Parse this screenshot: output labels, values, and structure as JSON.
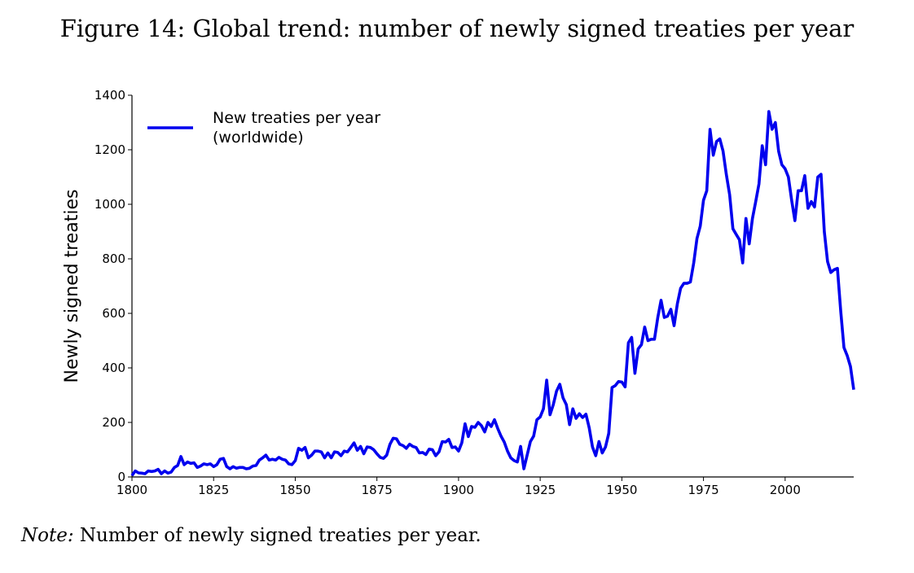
{
  "figure": {
    "title": "Figure 14: Global trend: number of newly signed treaties per year",
    "note_label": "Note:",
    "note_text": " Number of newly signed treaties per year."
  },
  "chart_data": {
    "type": "line",
    "title": "",
    "xlabel": "",
    "ylabel": "Newly signed treaties",
    "xlim": [
      1800,
      2021
    ],
    "ylim": [
      0,
      1400
    ],
    "xticks": [
      1800,
      1825,
      1850,
      1875,
      1900,
      1925,
      1950,
      1975,
      2000
    ],
    "yticks": [
      0,
      200,
      400,
      600,
      800,
      1000,
      1200,
      1400
    ],
    "grid": false,
    "legend_position": "top-left",
    "series": [
      {
        "name": "New treaties per year\n(worldwide)",
        "color": "#0000ee",
        "x": [
          1800,
          1801,
          1802,
          1803,
          1804,
          1805,
          1806,
          1807,
          1808,
          1809,
          1810,
          1811,
          1812,
          1813,
          1814,
          1815,
          1816,
          1817,
          1818,
          1819,
          1820,
          1821,
          1822,
          1823,
          1824,
          1825,
          1826,
          1827,
          1828,
          1829,
          1830,
          1831,
          1832,
          1833,
          1834,
          1835,
          1836,
          1837,
          1838,
          1839,
          1840,
          1841,
          1842,
          1843,
          1844,
          1845,
          1846,
          1847,
          1848,
          1849,
          1850,
          1851,
          1852,
          1853,
          1854,
          1855,
          1856,
          1857,
          1858,
          1859,
          1860,
          1861,
          1862,
          1863,
          1864,
          1865,
          1866,
          1867,
          1868,
          1869,
          1870,
          1871,
          1872,
          1873,
          1874,
          1875,
          1876,
          1877,
          1878,
          1879,
          1880,
          1881,
          1882,
          1883,
          1884,
          1885,
          1886,
          1887,
          1888,
          1889,
          1890,
          1891,
          1892,
          1893,
          1894,
          1895,
          1896,
          1897,
          1898,
          1899,
          1900,
          1901,
          1902,
          1903,
          1904,
          1905,
          1906,
          1907,
          1908,
          1909,
          1910,
          1911,
          1912,
          1913,
          1914,
          1915,
          1916,
          1917,
          1918,
          1919,
          1920,
          1921,
          1922,
          1923,
          1924,
          1925,
          1926,
          1927,
          1928,
          1929,
          1930,
          1931,
          1932,
          1933,
          1934,
          1935,
          1936,
          1937,
          1938,
          1939,
          1940,
          1941,
          1942,
          1943,
          1944,
          1945,
          1946,
          1947,
          1948,
          1949,
          1950,
          1951,
          1952,
          1953,
          1954,
          1955,
          1956,
          1957,
          1958,
          1959,
          1960,
          1961,
          1962,
          1963,
          1964,
          1965,
          1966,
          1967,
          1968,
          1969,
          1970,
          1971,
          1972,
          1973,
          1974,
          1975,
          1976,
          1977,
          1978,
          1979,
          1980,
          1981,
          1982,
          1983,
          1984,
          1985,
          1986,
          1987,
          1988,
          1989,
          1990,
          1991,
          1992,
          1993,
          1994,
          1995,
          1996,
          1997,
          1998,
          1999,
          2000,
          2001,
          2002,
          2003,
          2004,
          2005,
          2006,
          2007,
          2008,
          2009,
          2010,
          2011,
          2012,
          2013,
          2014,
          2015,
          2016,
          2017,
          2018,
          2019,
          2020,
          2021
        ],
        "values": [
          5,
          22,
          15,
          14,
          12,
          22,
          20,
          22,
          28,
          12,
          22,
          14,
          18,
          35,
          42,
          75,
          45,
          55,
          50,
          52,
          35,
          40,
          48,
          45,
          48,
          38,
          45,
          65,
          68,
          38,
          30,
          38,
          32,
          35,
          35,
          30,
          32,
          40,
          42,
          62,
          70,
          80,
          62,
          65,
          62,
          72,
          65,
          62,
          48,
          45,
          60,
          105,
          98,
          108,
          70,
          80,
          95,
          95,
          92,
          70,
          88,
          70,
          92,
          90,
          78,
          95,
          92,
          108,
          125,
          98,
          112,
          85,
          110,
          108,
          100,
          85,
          72,
          68,
          80,
          120,
          142,
          140,
          120,
          115,
          105,
          120,
          112,
          108,
          88,
          90,
          82,
          102,
          100,
          78,
          92,
          130,
          128,
          138,
          108,
          110,
          95,
          125,
          195,
          148,
          185,
          182,
          200,
          188,
          165,
          200,
          185,
          210,
          178,
          150,
          128,
          95,
          70,
          60,
          55,
          112,
          30,
          80,
          130,
          150,
          210,
          220,
          250,
          355,
          228,
          265,
          315,
          340,
          290,
          265,
          192,
          250,
          215,
          232,
          218,
          230,
          180,
          110,
          78,
          130,
          88,
          110,
          160,
          328,
          335,
          350,
          348,
          330,
          492,
          512,
          380,
          470,
          485,
          550,
          500,
          505,
          505,
          585,
          648,
          585,
          590,
          615,
          555,
          635,
          692,
          710,
          710,
          715,
          785,
          875,
          920,
          1015,
          1050,
          1275,
          1180,
          1230,
          1240,
          1195,
          1110,
          1035,
          910,
          890,
          870,
          785,
          948,
          855,
          948,
          1010,
          1075,
          1215,
          1145,
          1340,
          1275,
          1300,
          1195,
          1145,
          1130,
          1100,
          1015,
          940,
          1050,
          1050,
          1105,
          985,
          1010,
          990,
          1100,
          1110,
          900,
          790,
          750,
          760,
          765,
          610,
          475,
          445,
          405,
          320
        ]
      }
    ]
  }
}
